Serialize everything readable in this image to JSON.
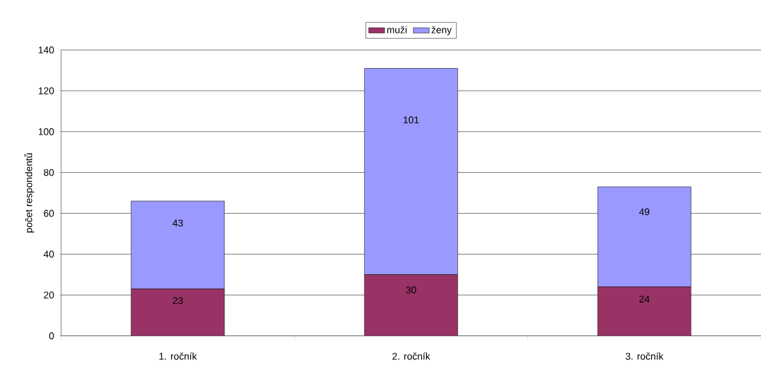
{
  "chart_data": {
    "type": "bar",
    "stacked": true,
    "ylabel": "počet respondentů",
    "categories": [
      "1. ročník",
      "2. ročník",
      "3. ročník"
    ],
    "series": [
      {
        "name": "muži",
        "color": "#993366",
        "values": [
          23,
          30,
          24
        ]
      },
      {
        "name": "ženy",
        "color": "#9999ff",
        "values": [
          43,
          101,
          49
        ]
      }
    ],
    "ylim": [
      0,
      140
    ],
    "yticks": [
      0,
      20,
      40,
      60,
      80,
      100,
      120,
      140
    ],
    "grid": "y",
    "legend": "top",
    "data_labels": true
  }
}
